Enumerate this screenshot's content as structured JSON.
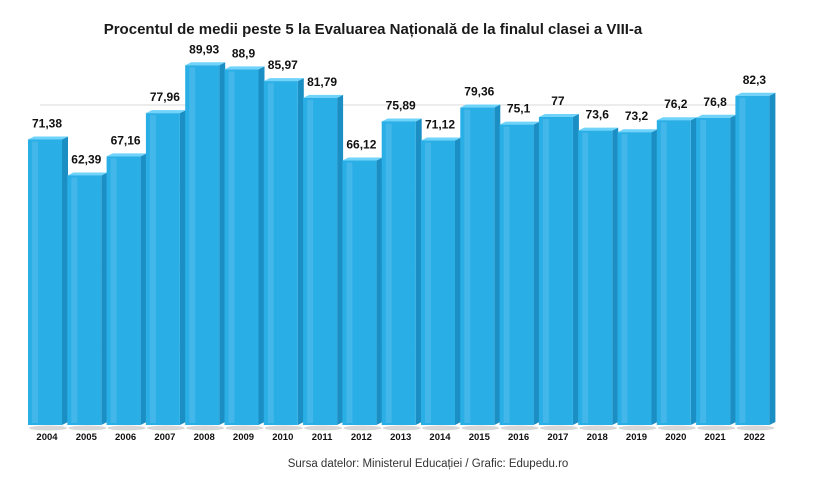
{
  "chart_data": {
    "type": "bar",
    "title": "Procentul de medii peste 5 la Evaluarea Națională de la finalul clasei a VIII-a",
    "categories": [
      "2004",
      "2005",
      "2006",
      "2007",
      "2008",
      "2009",
      "2010",
      "2011",
      "2012",
      "2013",
      "2014",
      "2015",
      "2016",
      "2017",
      "2018",
      "2019",
      "2020",
      "2021",
      "2022"
    ],
    "values": [
      71.38,
      62.39,
      67.16,
      77.96,
      89.93,
      88.9,
      85.97,
      81.79,
      66.12,
      75.89,
      71.12,
      79.36,
      75.1,
      77,
      73.6,
      73.2,
      76.2,
      76.8,
      82.3
    ],
    "value_labels": [
      "71,38",
      "62,39",
      "67,16",
      "77,96",
      "89,93",
      "88,9",
      "85,97",
      "81,79",
      "66,12",
      "75,89",
      "71,12",
      "79,36",
      "75,1",
      "77",
      "73,6",
      "73,2",
      "76,2",
      "76,8",
      "82,3"
    ],
    "xlabel": "",
    "ylabel": "",
    "ylim": [
      0,
      95
    ],
    "grid": true,
    "legend": "none",
    "bar_color": "#29aee6",
    "bar_side_color": "#1b8fc4",
    "bar_top_color": "#6fd3fa",
    "source": "Sursa datelor: Ministerul Educației / Grafic: Edupedu.ro"
  }
}
